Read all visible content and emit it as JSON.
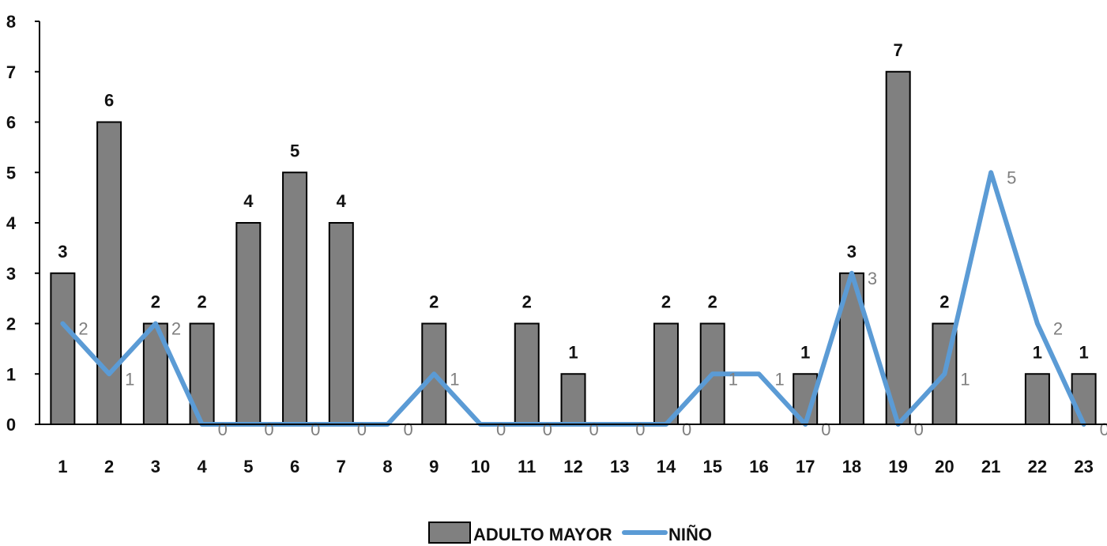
{
  "chart_data": {
    "type": "bar",
    "categories": [
      "1",
      "2",
      "3",
      "4",
      "5",
      "6",
      "7",
      "8",
      "9",
      "10",
      "11",
      "12",
      "13",
      "14",
      "15",
      "16",
      "17",
      "18",
      "19",
      "20",
      "21",
      "22",
      "23"
    ],
    "series": [
      {
        "name": "ADULTO MAYOR",
        "type": "bar",
        "color": "#808080",
        "values": [
          3,
          6,
          2,
          2,
          4,
          5,
          4,
          null,
          2,
          null,
          2,
          1,
          null,
          2,
          2,
          null,
          1,
          3,
          7,
          2,
          null,
          1,
          1
        ],
        "labels": [
          "3",
          "6",
          "2",
          "2",
          "4",
          "5",
          "4",
          "",
          "2",
          "",
          "2",
          "1",
          "",
          "2",
          "2",
          "",
          "1",
          "3",
          "7",
          "2",
          "",
          "1",
          "1"
        ]
      },
      {
        "name": "NIÑO",
        "type": "line",
        "color": "#5b9bd5",
        "values": [
          2,
          1,
          2,
          0,
          0,
          0,
          0,
          0,
          1,
          0,
          0,
          0,
          0,
          0,
          1,
          1,
          0,
          3,
          0,
          1,
          5,
          2,
          0
        ],
        "labels": [
          "2",
          "1",
          "2",
          "0",
          "0",
          "0",
          "0",
          "0",
          "1",
          "0",
          "0",
          "0",
          "0",
          "0",
          "1",
          "1",
          "0",
          "3",
          "0",
          "1",
          "5",
          "2",
          "0"
        ]
      }
    ],
    "y_ticks": [
      "0",
      "1",
      "2",
      "3",
      "4",
      "5",
      "6",
      "7",
      "8"
    ],
    "ylim": [
      0,
      8
    ],
    "legend_position": "bottom",
    "grid": false
  }
}
